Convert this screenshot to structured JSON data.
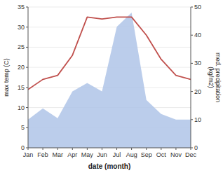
{
  "chart_data": {
    "type": "line",
    "categories": [
      "Jan",
      "Feb",
      "Mar",
      "Apr",
      "May",
      "Jun",
      "Jul",
      "Aug",
      "Sep",
      "Oct",
      "Nov",
      "Dec"
    ],
    "xlabel": "date (month)",
    "ylabel": "max temp (C)",
    "y2label": "med. precipitation\n(kg/m2)",
    "series": [
      {
        "type": "area",
        "axis": "y2",
        "color": "#afc4e8",
        "values": [
          10.0,
          14.0,
          10.5,
          20.0,
          23.0,
          20.0,
          43.0,
          48.0,
          17.0,
          12.0,
          10.0,
          10.0
        ]
      },
      {
        "type": "line",
        "color": "#c0504d",
        "values": [
          14.5,
          17.0,
          18.0,
          23.0,
          32.5,
          32.0,
          32.5,
          32.5,
          28.0,
          22.0,
          18.0,
          17.0
        ]
      }
    ],
    "ylim": [
      0,
      35
    ],
    "yticks": [
      0,
      5,
      10,
      15,
      20,
      25,
      30,
      35
    ],
    "y2lim": [
      0,
      50
    ],
    "y2ticks": [
      0,
      10,
      20,
      30,
      40,
      50
    ],
    "grid": true
  }
}
